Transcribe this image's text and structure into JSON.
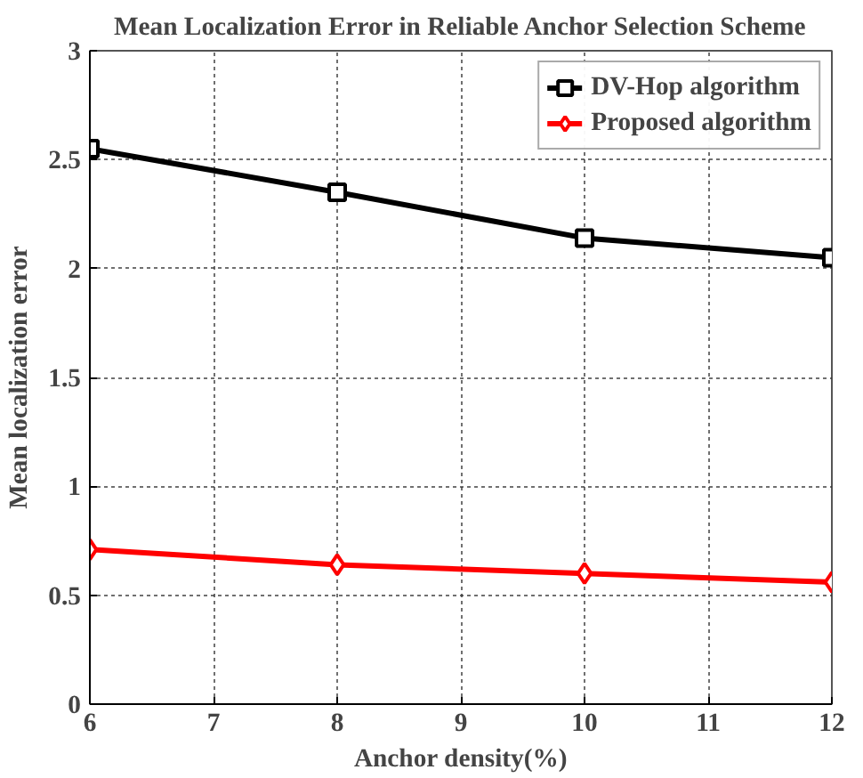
{
  "chart_data": {
    "type": "line",
    "title": "Mean Localization Error in Reliable Anchor Selection Scheme",
    "xlabel": "Anchor density(%)",
    "ylabel": "Mean localization error",
    "x": [
      6,
      8,
      10,
      12
    ],
    "series": [
      {
        "name": "DV-Hop algorithm",
        "color": "#000000",
        "marker": "square",
        "values": [
          2.55,
          2.35,
          2.14,
          2.05
        ]
      },
      {
        "name": "Proposed algorithm",
        "color": "#ff0000",
        "marker": "diamond",
        "values": [
          0.71,
          0.64,
          0.6,
          0.56
        ]
      }
    ],
    "xlim": [
      6,
      12
    ],
    "xticks": [
      6,
      7,
      8,
      9,
      10,
      11,
      12
    ],
    "ylim": [
      0,
      3
    ],
    "yticks": [
      0,
      0.5,
      1,
      1.5,
      2,
      2.5,
      3
    ],
    "grid": true,
    "legend": "top right",
    "line_style": "solid"
  }
}
